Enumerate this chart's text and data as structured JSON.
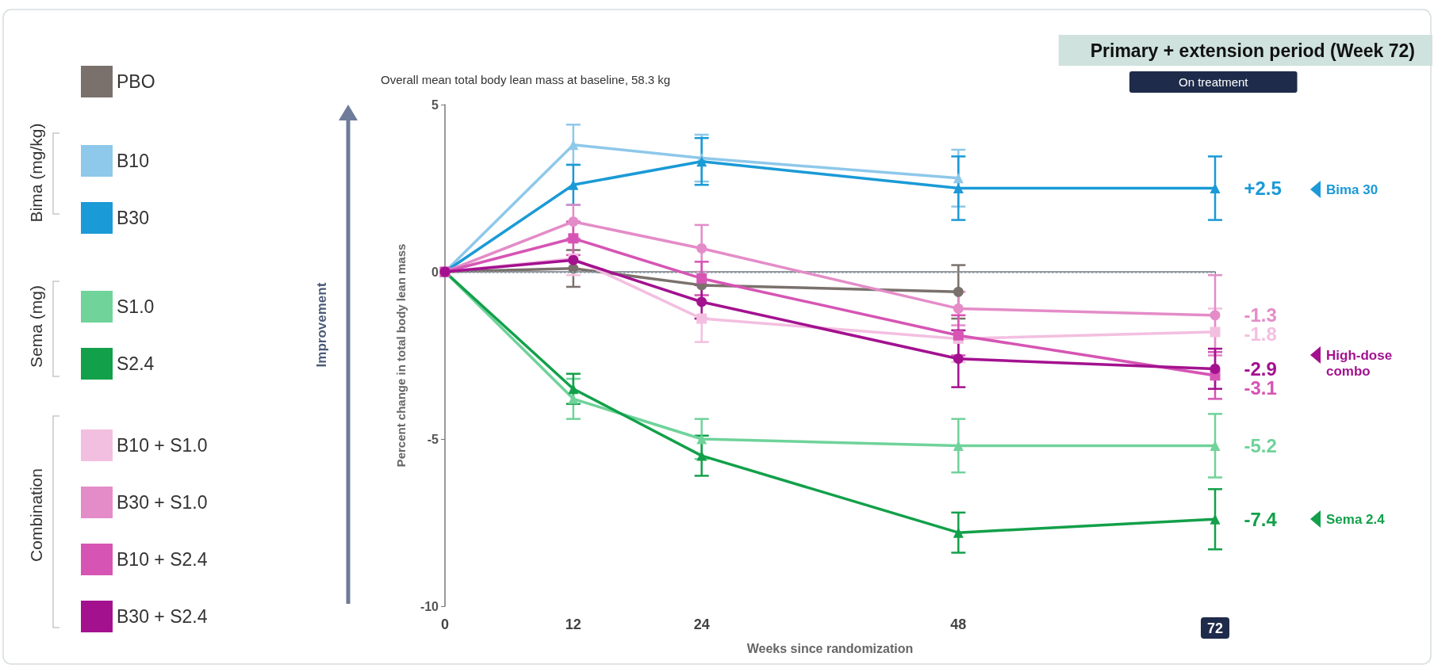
{
  "chart_data": {
    "type": "line",
    "subtitle": "Overall mean total body lean mass at baseline, 58.3 kg",
    "xlabel": "Weeks since randomization",
    "ylabel": "Percent change in total body lean mass",
    "x": [
      0,
      12,
      24,
      48,
      72
    ],
    "xlim": [
      0,
      72
    ],
    "xticks": [
      0,
      12,
      24,
      48,
      72
    ],
    "ylim": [
      -10,
      5
    ],
    "yticks": [
      -10,
      -5,
      0,
      5
    ],
    "grid": false,
    "legend": "left",
    "line_style": "solid",
    "series": [
      {
        "name": "PBO",
        "color": "#7a716c",
        "marker": "circle",
        "values": [
          0,
          0.1,
          -0.4,
          -0.6,
          null
        ],
        "errors": [
          null,
          0.55,
          null,
          0.8,
          null
        ]
      },
      {
        "name": "B10",
        "color": "#8ec8ea",
        "marker": "triangle",
        "values": [
          0,
          3.8,
          3.4,
          2.8,
          null
        ],
        "errors": [
          null,
          0.6,
          0.7,
          0.85,
          null
        ]
      },
      {
        "name": "B30",
        "color": "#1a9ad6",
        "marker": "triangle",
        "values": [
          0,
          2.6,
          3.3,
          2.5,
          2.5
        ],
        "errors": [
          null,
          0.6,
          0.7,
          0.95,
          0.95
        ],
        "value_labels": [
          null,
          null,
          null,
          null,
          "+2.5"
        ]
      },
      {
        "name": "S1.0",
        "color": "#6fd39a",
        "marker": "triangle",
        "values": [
          0,
          -3.8,
          -5.0,
          -5.2,
          -5.2
        ],
        "errors": [
          null,
          0.6,
          0.6,
          0.8,
          0.95
        ],
        "value_labels": [
          null,
          null,
          null,
          null,
          "-5.2"
        ]
      },
      {
        "name": "S2.4",
        "color": "#12a04a",
        "marker": "triangle",
        "values": [
          0,
          -3.5,
          -5.5,
          -7.8,
          -7.4
        ],
        "errors": [
          null,
          0.45,
          0.6,
          0.6,
          0.9
        ],
        "value_labels": [
          null,
          null,
          null,
          null,
          "-7.4"
        ]
      },
      {
        "name": "B10 + S1.0",
        "color": "#f3bfe0",
        "marker": "square",
        "values": [
          0,
          0.4,
          -1.4,
          -2.0,
          -1.8
        ],
        "errors": [
          null,
          0.5,
          0.7,
          0.7,
          0.7
        ],
        "value_labels": [
          null,
          null,
          null,
          null,
          "-1.8"
        ]
      },
      {
        "name": "B30 + S1.0",
        "color": "#e48cc8",
        "marker": "circle",
        "values": [
          0,
          1.5,
          0.7,
          -1.1,
          -1.3
        ],
        "errors": [
          null,
          0.5,
          0.7,
          0.5,
          1.2
        ],
        "value_labels": [
          null,
          null,
          null,
          null,
          "-1.3"
        ]
      },
      {
        "name": "B10 + S2.4",
        "color": "#d655b4",
        "marker": "square",
        "values": [
          0,
          1.0,
          -0.2,
          -1.9,
          -3.1
        ],
        "errors": [
          null,
          0.5,
          0.5,
          0.6,
          0.7
        ],
        "value_labels": [
          null,
          null,
          null,
          null,
          "-3.1"
        ]
      },
      {
        "name": "B30 + S2.4",
        "color": "#a3118f",
        "marker": "circle",
        "values": [
          0,
          0.35,
          -0.9,
          -2.6,
          -2.9
        ],
        "errors": [
          null,
          null,
          0.5,
          0.85,
          0.6
        ],
        "value_labels": [
          null,
          null,
          null,
          null,
          "-2.9"
        ]
      }
    ],
    "ref_lines": [
      {
        "axis": "y",
        "value": 0,
        "color": "#8a9aa8",
        "line_style": "dotted"
      }
    ],
    "annotations": [
      "Primary + extension period (Week 72)",
      "On treatment",
      "Improvement",
      "Bima (mg/kg)",
      "Sema (mg)",
      "Combination",
      "Bima 30",
      "High-dose combo",
      "Sema 2.4"
    ]
  }
}
